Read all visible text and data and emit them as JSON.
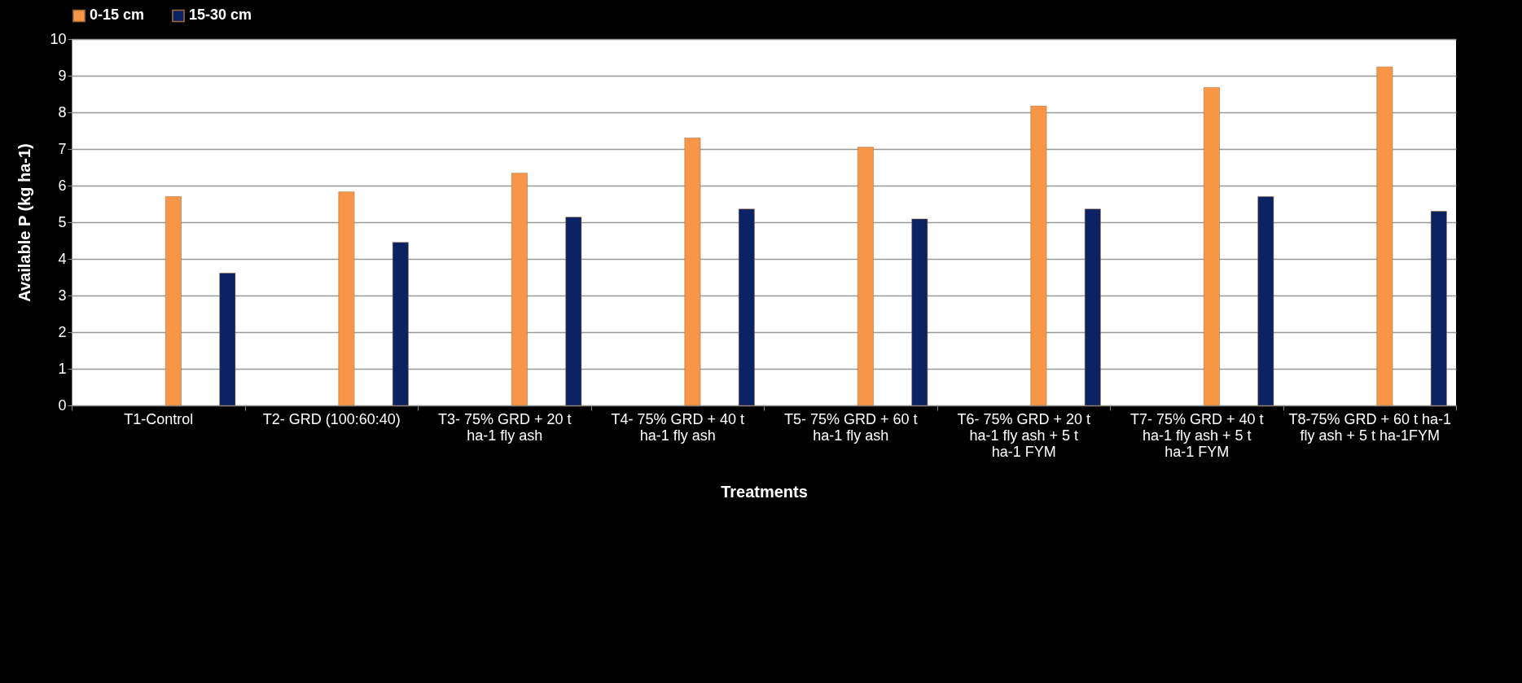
{
  "chart_data": {
    "type": "bar",
    "xlabel": "Treatments",
    "ylabel": "Available P (kg ha-1)",
    "categories": [
      "T1-Control",
      "T2- GRD (100:60:40)",
      "T3- 75% GRD + 20 t ha-1 fly ash",
      "T4- 75% GRD + 40 t ha-1 fly ash",
      "T5- 75% GRD + 60 t ha-1 fly ash",
      "T6- 75% GRD + 20 t ha-1 fly ash + 5 t ha-1 FYM",
      "T7- 75% GRD + 40 t ha-1 fly ash + 5 t ha-1 FYM",
      "T8-75% GRD + 60 t ha-1 fly ash + 5 t ha-1FYM"
    ],
    "series": [
      {
        "name": "0-15 cm",
        "color": "#f79646",
        "values": [
          5.7,
          5.83,
          6.34,
          7.3,
          7.05,
          8.17,
          8.68,
          9.24
        ]
      },
      {
        "name": "15-30 cm",
        "color": "#0b2363",
        "values": [
          3.61,
          4.45,
          5.14,
          5.36,
          5.09,
          5.36,
          5.7,
          5.3
        ]
      }
    ],
    "ylim": [
      0,
      10
    ],
    "yticks": [
      0,
      1,
      2,
      3,
      4,
      5,
      6,
      7,
      8,
      9,
      10
    ],
    "grid": "y",
    "legend": "top"
  }
}
